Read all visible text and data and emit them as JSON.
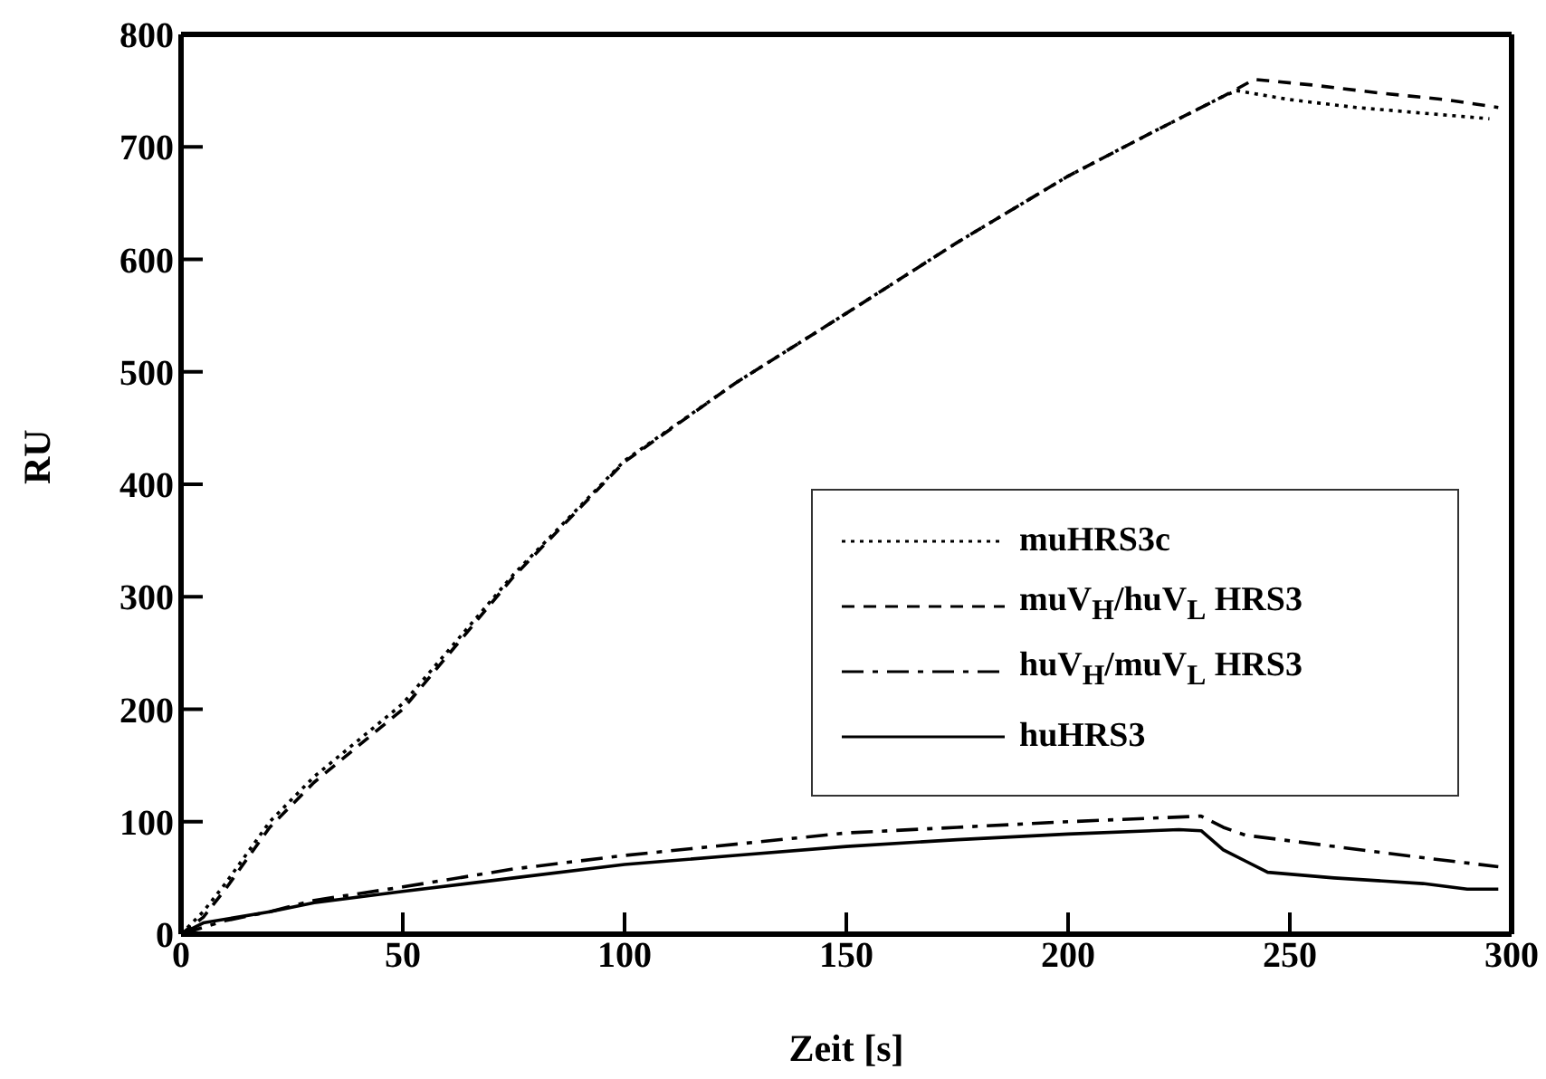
{
  "chart_data": {
    "type": "line",
    "xlabel": "Zeit [s]",
    "ylabel": "RU",
    "xlim": [
      0,
      300
    ],
    "xticks": [
      0,
      50,
      100,
      150,
      200,
      250,
      300
    ],
    "ylim": [
      0,
      800
    ],
    "yticks": [
      0,
      100,
      200,
      300,
      400,
      500,
      600,
      700,
      800
    ],
    "legend": "right",
    "marker": "none",
    "series": [
      {
        "name": "muHRS3c",
        "color": "#000000",
        "line_style": "dotted",
        "x": [
          0,
          5,
          10,
          20,
          30,
          50,
          75,
          100,
          125,
          150,
          175,
          200,
          220,
          235,
          238,
          250,
          265,
          280,
          295
        ],
        "values": [
          0,
          20,
          45,
          100,
          140,
          205,
          320,
          421,
          490,
          552,
          615,
          674,
          715,
          745,
          750,
          742,
          735,
          730,
          725
        ]
      },
      {
        "name": "muV$_{H}$/huV$_{L}$ HRS3",
        "color": "#000000",
        "line_style": "dashed",
        "x": [
          0,
          5,
          10,
          20,
          30,
          50,
          75,
          100,
          125,
          150,
          175,
          200,
          220,
          235,
          242,
          255,
          270,
          285,
          297
        ],
        "values": [
          0,
          15,
          40,
          95,
          135,
          200,
          318,
          420,
          490,
          552,
          615,
          674,
          715,
          745,
          760,
          755,
          748,
          742,
          735
        ]
      },
      {
        "name": "huV$_{H}$/muV$_{L}$ HRS3",
        "color": "#000000",
        "line_style": "dashed",
        "x": [
          0,
          10,
          20,
          30,
          50,
          75,
          100,
          125,
          150,
          175,
          200,
          230,
          235,
          240,
          260,
          280,
          297
        ],
        "values": [
          0,
          12,
          20,
          30,
          42,
          58,
          70,
          80,
          90,
          95,
          100,
          105,
          95,
          88,
          78,
          68,
          60
        ]
      },
      {
        "name": "huHRS3",
        "color": "#000000",
        "line_style": "solid",
        "x": [
          0,
          5,
          20,
          30,
          50,
          75,
          100,
          125,
          150,
          175,
          200,
          225,
          230,
          235,
          240,
          245,
          260,
          280,
          290,
          297
        ],
        "values": [
          0,
          10,
          20,
          28,
          38,
          50,
          62,
          70,
          78,
          84,
          89,
          93,
          92,
          75,
          65,
          55,
          50,
          45,
          40,
          40
        ]
      }
    ]
  }
}
